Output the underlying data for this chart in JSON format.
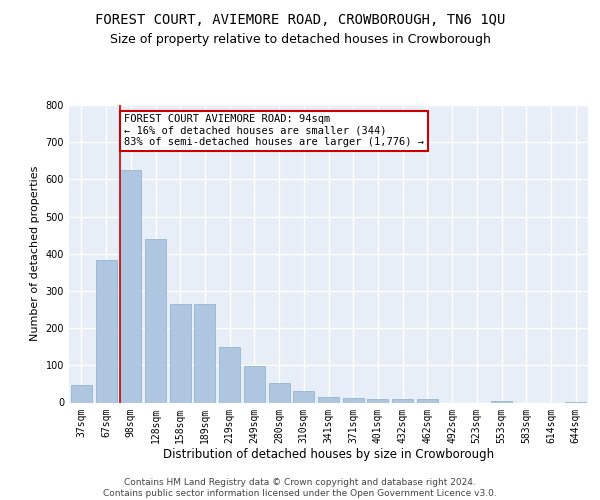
{
  "title1": "FOREST COURT, AVIEMORE ROAD, CROWBOROUGH, TN6 1QU",
  "title2": "Size of property relative to detached houses in Crowborough",
  "xlabel": "Distribution of detached houses by size in Crowborough",
  "ylabel": "Number of detached properties",
  "categories": [
    "37sqm",
    "67sqm",
    "98sqm",
    "128sqm",
    "158sqm",
    "189sqm",
    "219sqm",
    "249sqm",
    "280sqm",
    "310sqm",
    "341sqm",
    "371sqm",
    "401sqm",
    "432sqm",
    "462sqm",
    "492sqm",
    "523sqm",
    "553sqm",
    "583sqm",
    "614sqm",
    "644sqm"
  ],
  "values": [
    48,
    383,
    625,
    440,
    265,
    265,
    150,
    97,
    52,
    30,
    15,
    12,
    10,
    10,
    10,
    0,
    0,
    5,
    0,
    0,
    2
  ],
  "bar_color": "#aec6df",
  "bar_edge_color": "#8aafc8",
  "highlight_index": 2,
  "highlight_line_color": "#cc0000",
  "annotation_text": "FOREST COURT AVIEMORE ROAD: 94sqm\n← 16% of detached houses are smaller (344)\n83% of semi-detached houses are larger (1,776) →",
  "annotation_box_color": "#ffffff",
  "annotation_border_color": "#cc0000",
  "ylim": [
    0,
    800
  ],
  "yticks": [
    0,
    100,
    200,
    300,
    400,
    500,
    600,
    700,
    800
  ],
  "background_color": "#e8eef7",
  "grid_color": "#ffffff",
  "footer_text": "Contains HM Land Registry data © Crown copyright and database right 2024.\nContains public sector information licensed under the Open Government Licence v3.0.",
  "title1_fontsize": 10,
  "title2_fontsize": 9,
  "xlabel_fontsize": 8.5,
  "ylabel_fontsize": 8,
  "tick_fontsize": 7,
  "annotation_fontsize": 7.5,
  "footer_fontsize": 6.5
}
